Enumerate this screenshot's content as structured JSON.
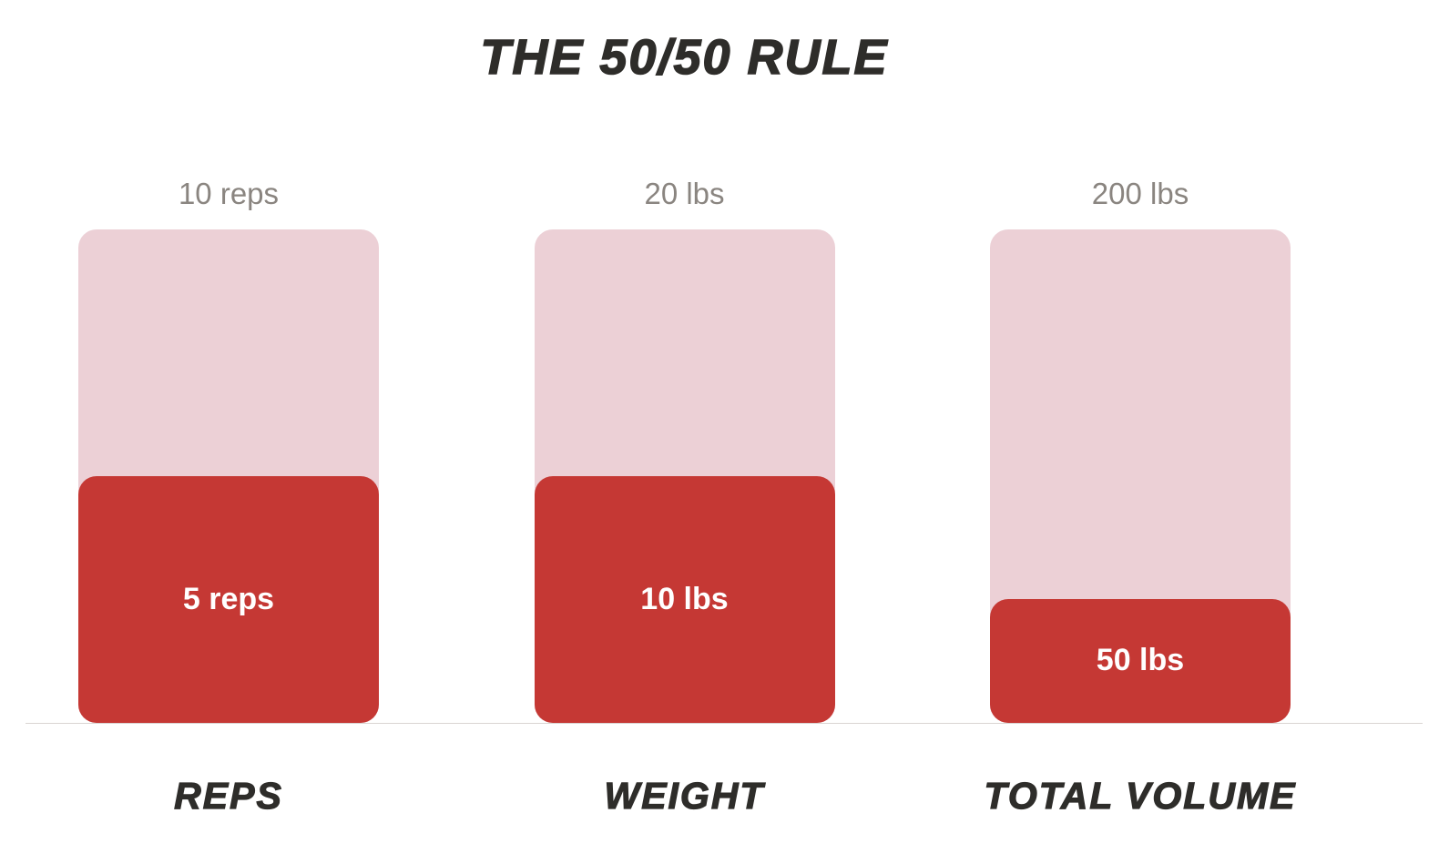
{
  "title": "THE 50/50 RULE",
  "chart_data": {
    "type": "bar",
    "title": "THE 50/50 RULE",
    "categories": [
      "REPS",
      "WEIGHT",
      "TOTAL VOLUME"
    ],
    "series": [
      {
        "name": "original-total",
        "values": [
          10,
          20,
          200
        ],
        "labels": [
          "10 reps",
          "20 lbs",
          "200 lbs"
        ],
        "color": "#ecd0d6"
      },
      {
        "name": "fifty-fifty-reduced",
        "values": [
          5,
          10,
          50
        ],
        "labels": [
          "5 reps",
          "10 lbs",
          "50 lbs"
        ],
        "color": "#c53834"
      }
    ],
    "legend": "none",
    "grid": false,
    "xlabel": "",
    "ylabel": "",
    "bars": [
      {
        "category": "REPS",
        "total": 10,
        "total_label": "10 reps",
        "highlight": 5,
        "highlight_label": "5 reps",
        "fill_percent": "50%"
      },
      {
        "category": "WEIGHT",
        "total": 20,
        "total_label": "20 lbs",
        "highlight": 10,
        "highlight_label": "10 lbs",
        "fill_percent": "50%"
      },
      {
        "category": "TOTAL VOLUME",
        "total": 200,
        "total_label": "200 lbs",
        "highlight": 50,
        "highlight_label": "50 lbs",
        "fill_percent": "25%"
      }
    ],
    "colors": {
      "background": "#ffffff",
      "bar_total": "#ecd0d6",
      "bar_highlight": "#c53834",
      "title_text": "#2e2d2a",
      "top_label_text": "#8a8580",
      "bar_label_text": "#ffffff",
      "baseline": "#d9d5d2"
    }
  }
}
